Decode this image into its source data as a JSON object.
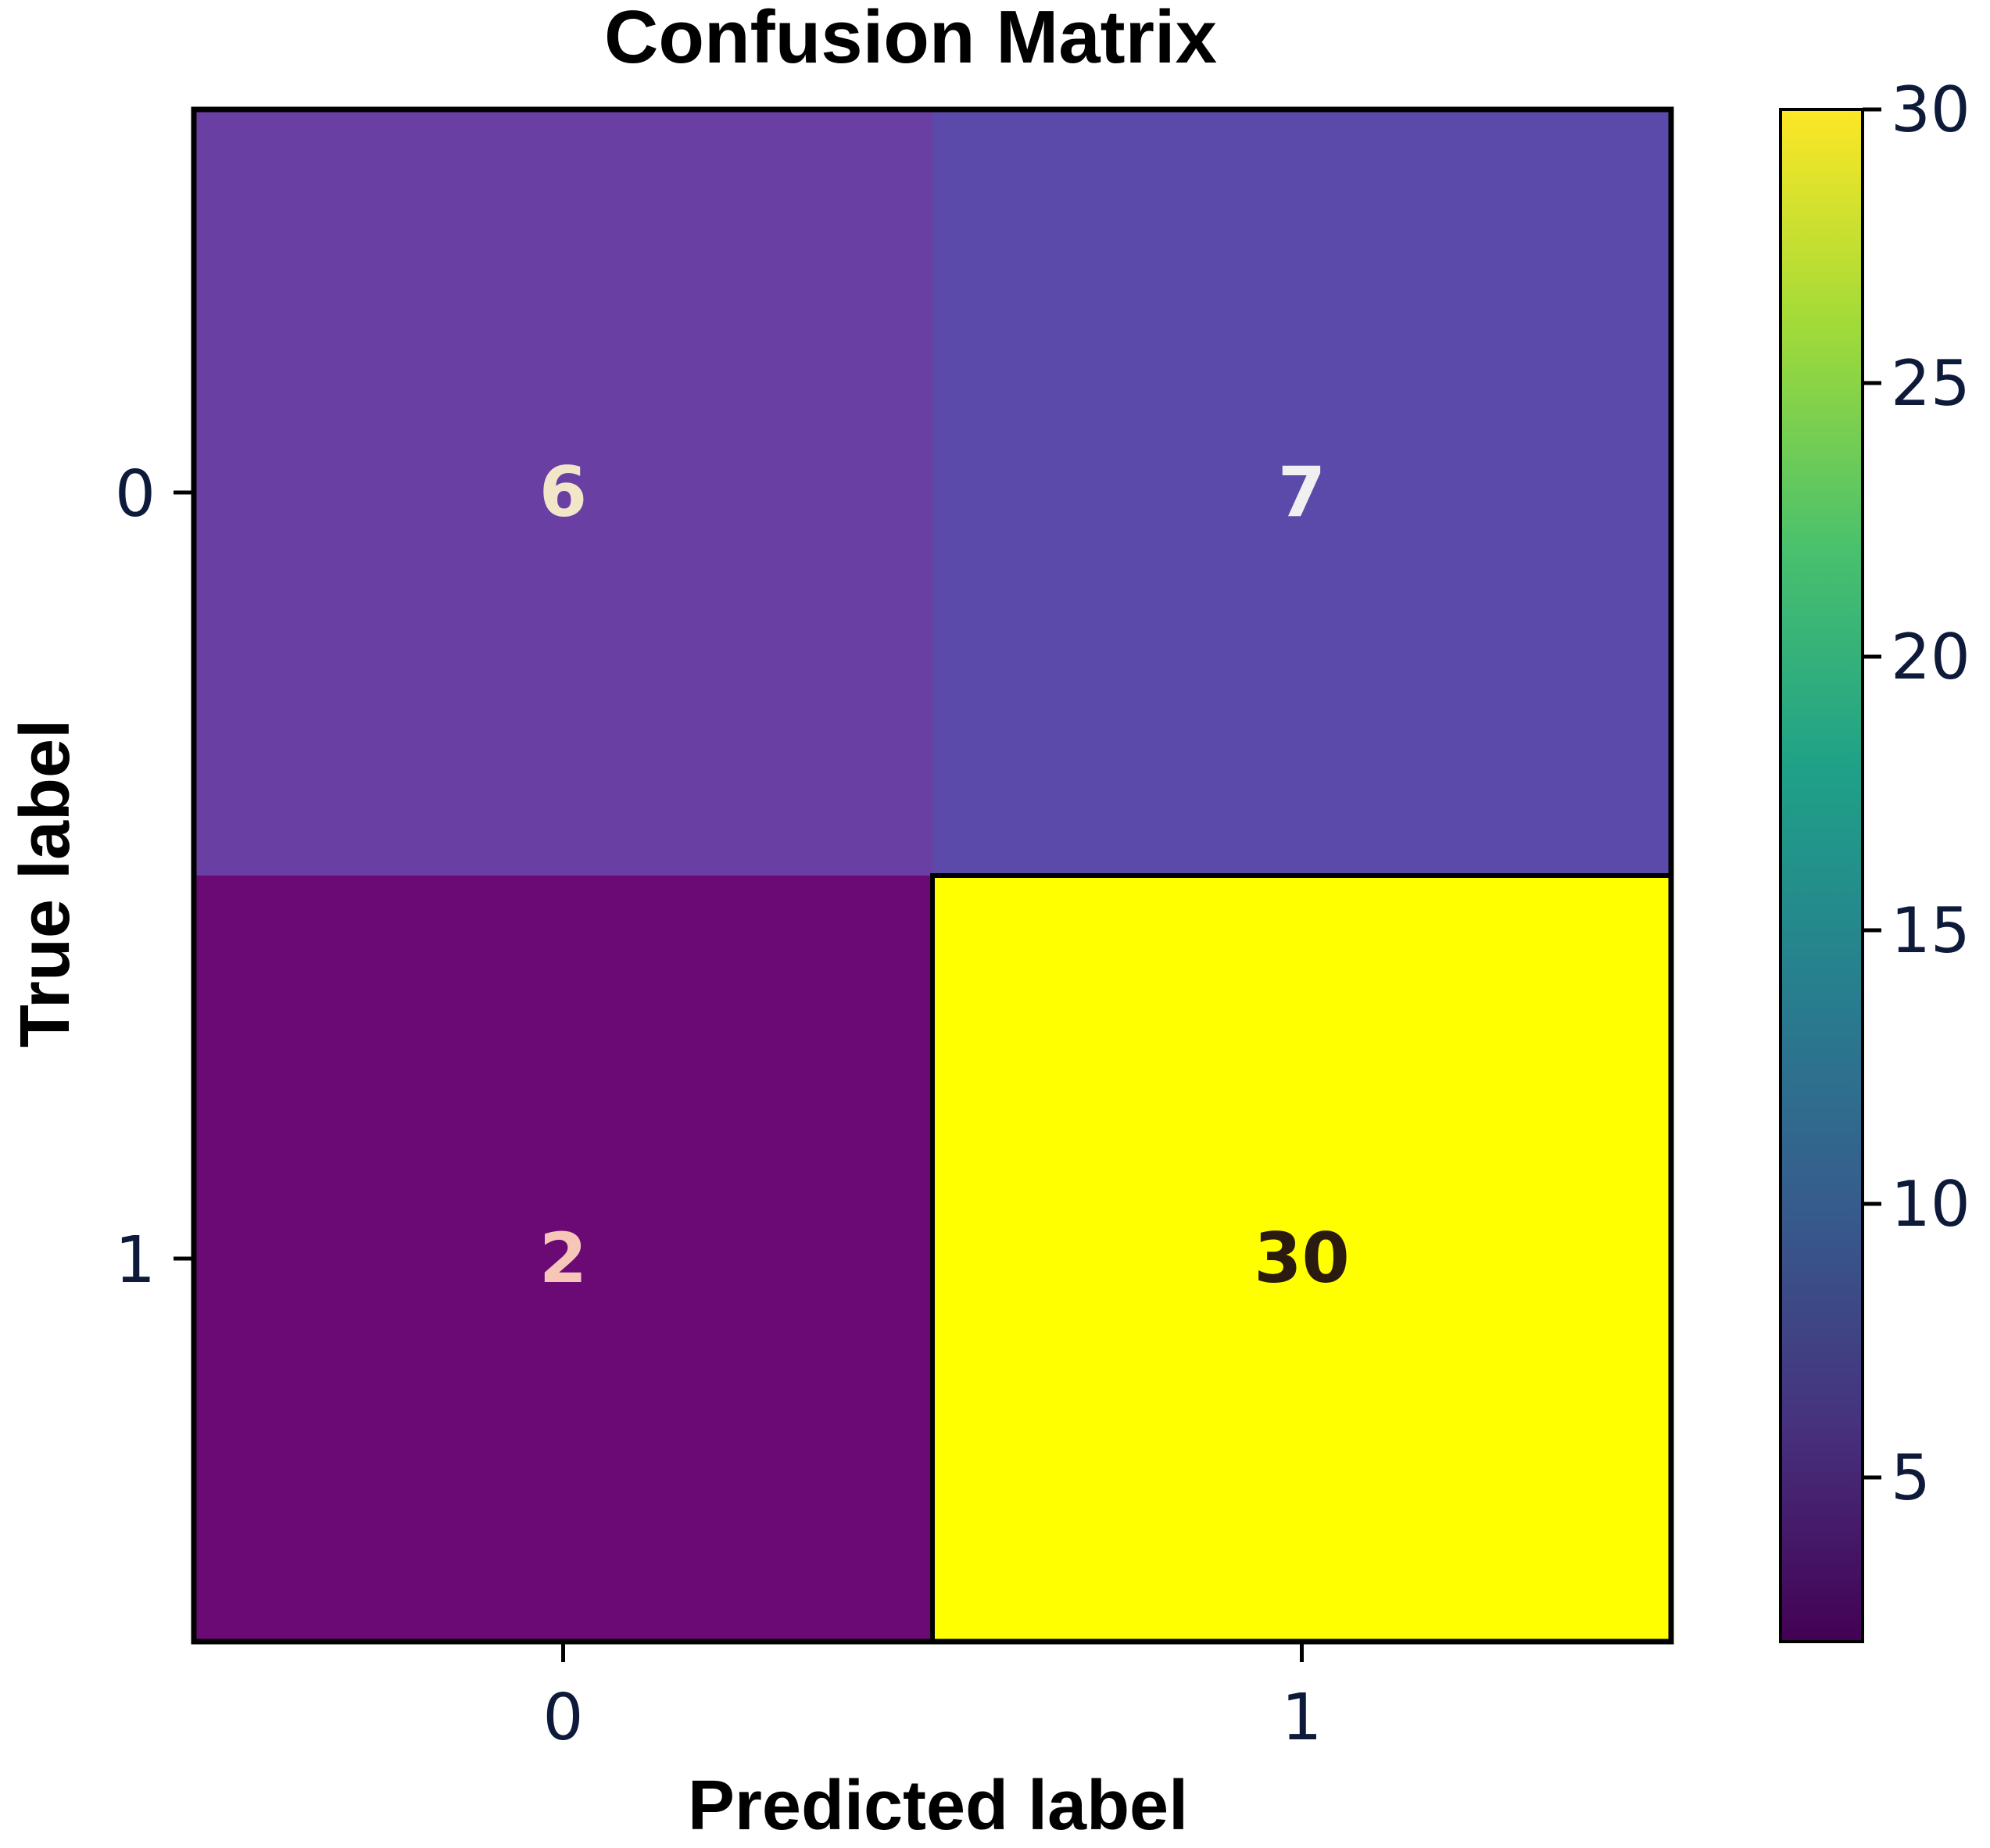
{
  "chart_data": {
    "type": "heatmap",
    "title": "Confusion Matrix",
    "xlabel": "Predicted label",
    "ylabel": "True label",
    "x_categories": [
      "0",
      "1"
    ],
    "y_categories": [
      "0",
      "1"
    ],
    "values": [
      [
        6,
        7
      ],
      [
        2,
        30
      ]
    ],
    "colorbar": {
      "range": [
        2,
        30
      ],
      "ticks": [
        5,
        10,
        15,
        20,
        25,
        30
      ],
      "colormap": [
        "#440154",
        "#46327e",
        "#365c8d",
        "#277f8e",
        "#1fa187",
        "#4ac16d",
        "#a0da39",
        "#fde725"
      ]
    },
    "cell_colors": [
      [
        "#6a3fa3",
        "#5b4aa9"
      ],
      [
        "#6b0a75",
        "#ffff00"
      ]
    ],
    "text_colors": [
      [
        "#f2e6c8",
        "#f0f0f0"
      ],
      [
        "#f6c6b8",
        "#2a1a10"
      ]
    ]
  }
}
